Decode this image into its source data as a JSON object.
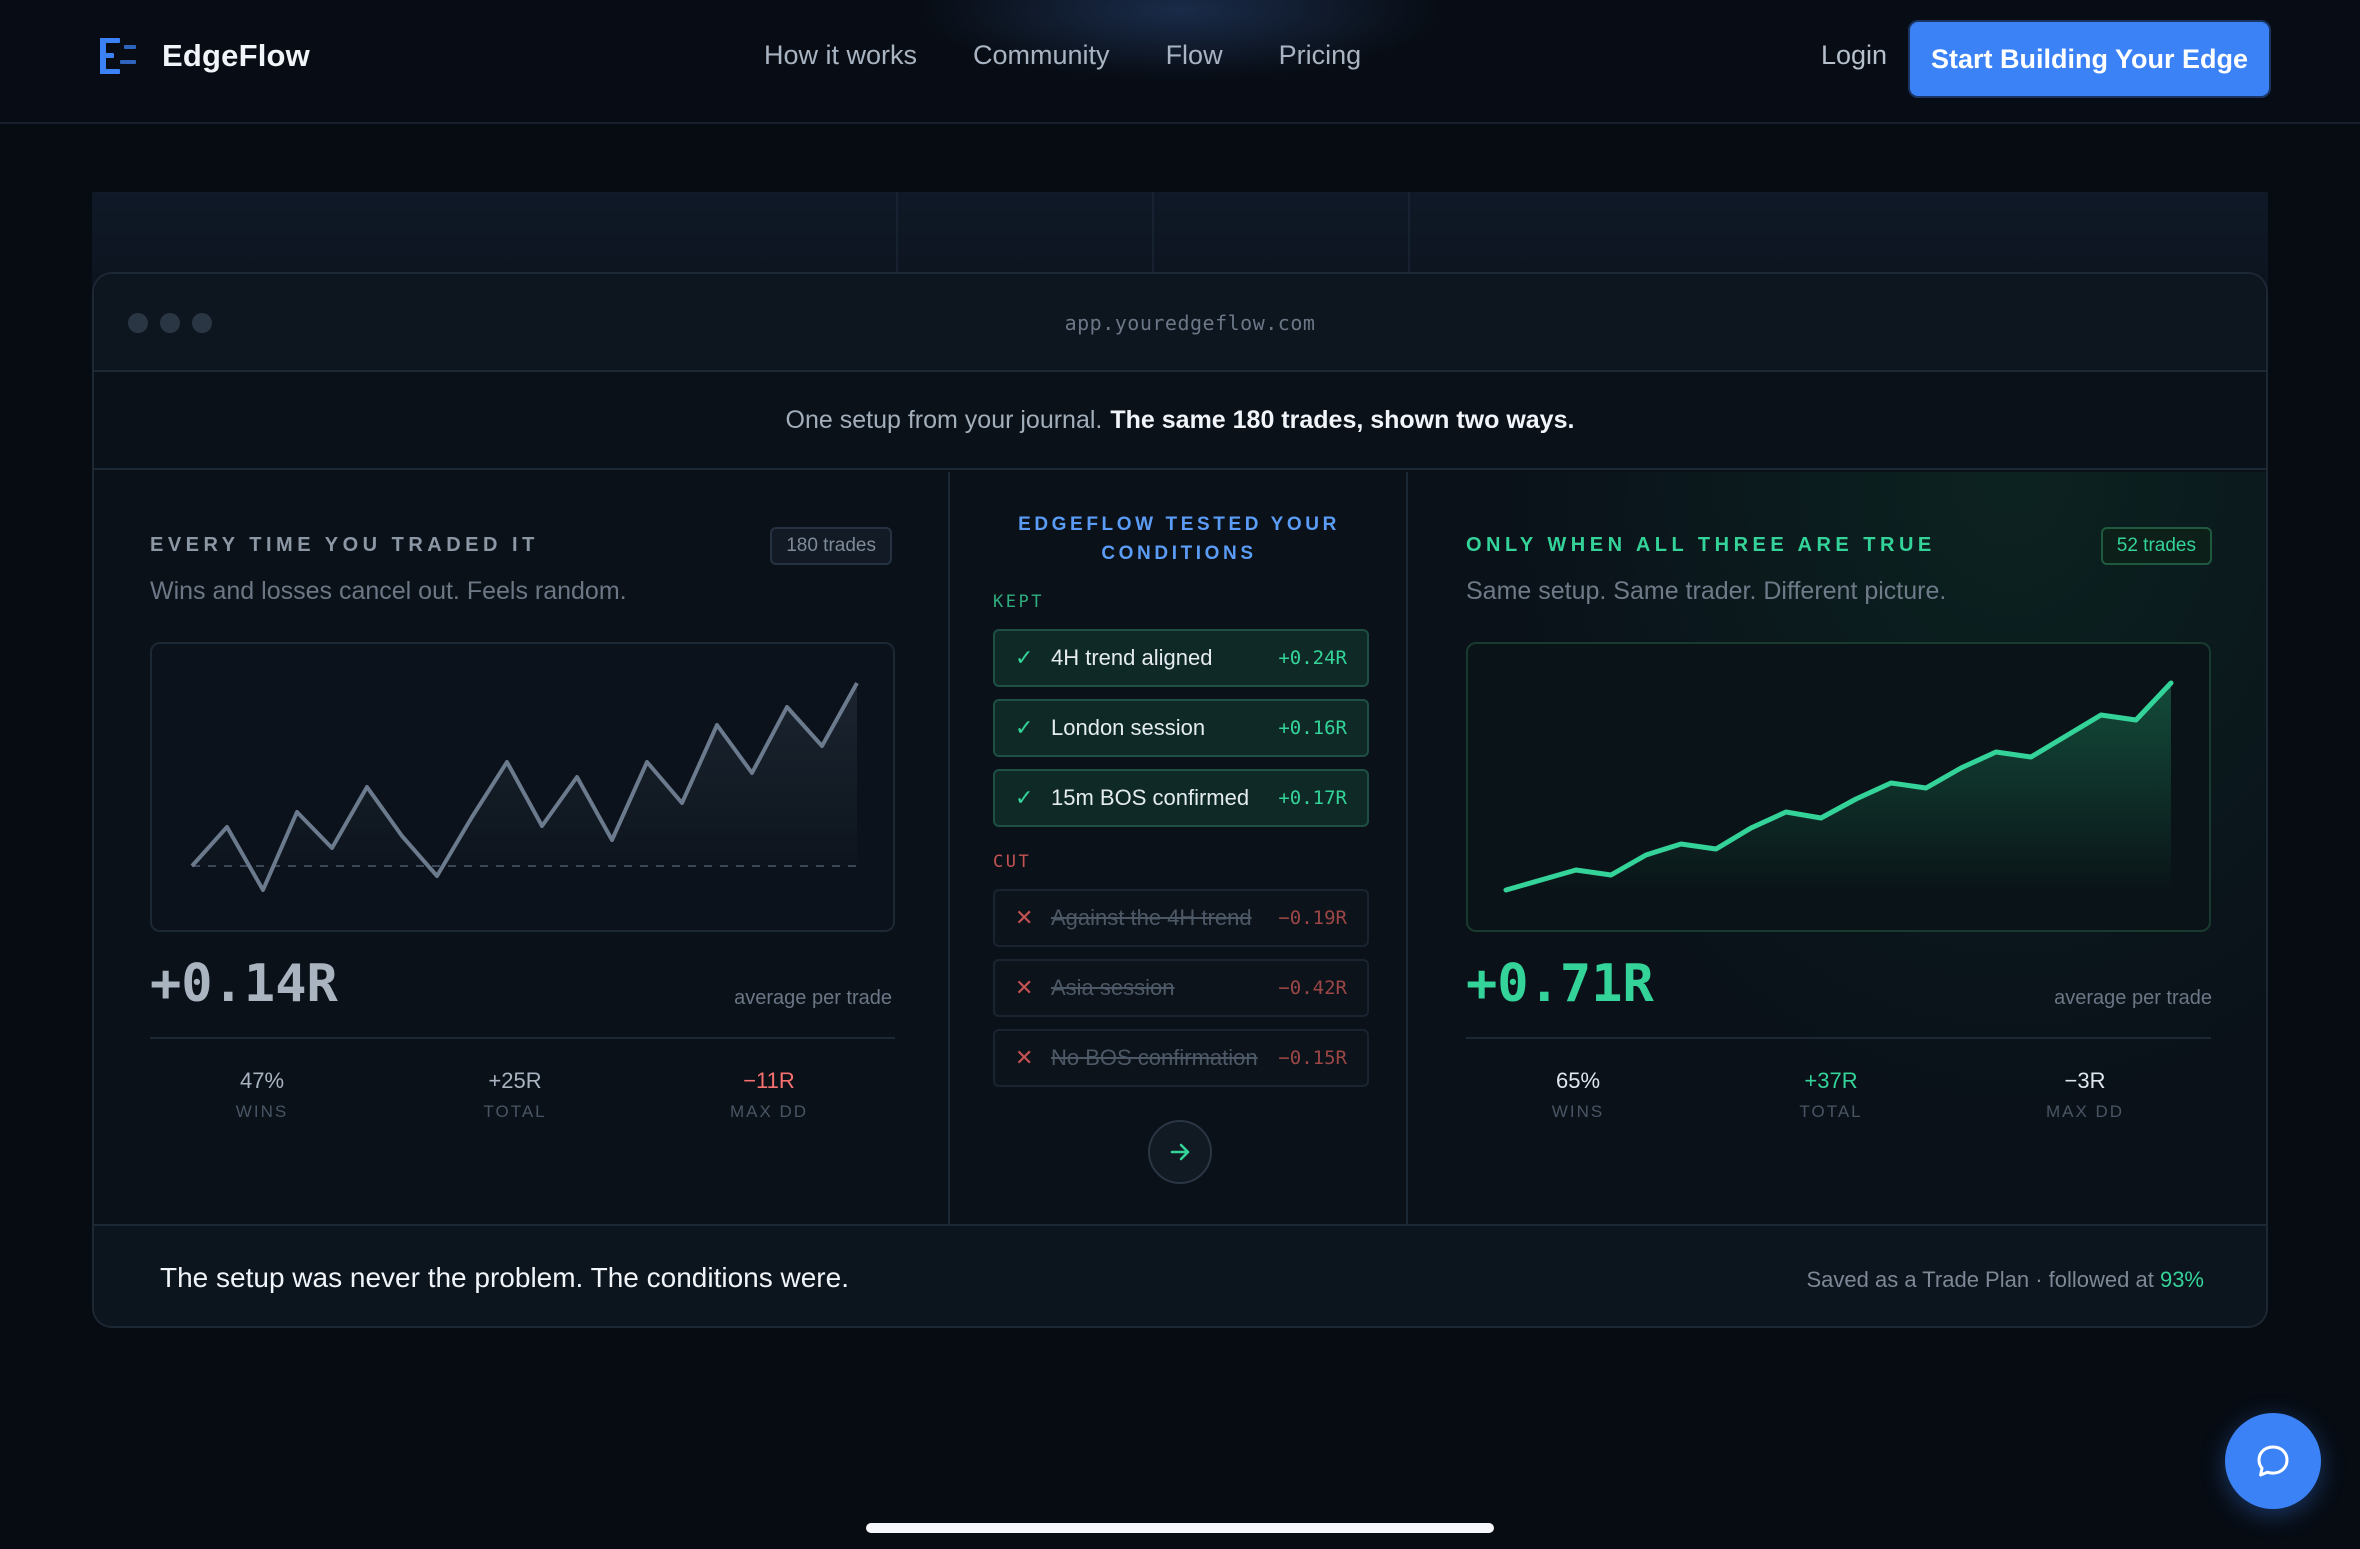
{
  "nav": {
    "brand": "EdgeFlow",
    "links": [
      "How it works",
      "Community",
      "Flow",
      "Pricing"
    ],
    "login": "Login",
    "cta": "Start Building Your Edge"
  },
  "browser": {
    "url": "app.youredgeflow.com"
  },
  "intro": {
    "lead": "One setup from your journal.",
    "emphasis": "The same 180 trades, shown two ways."
  },
  "left_panel": {
    "title": "EVERY TIME YOU TRADED IT",
    "subtitle": "Wins and losses cancel out. Feels random.",
    "badge": "180 trades",
    "value": "+0.14R",
    "value_caption": "average per trade",
    "stats": [
      {
        "value": "47%",
        "label": "WINS"
      },
      {
        "value": "+25R",
        "label": "TOTAL"
      },
      {
        "value": "−11R",
        "label": "MAX DD"
      }
    ],
    "line_color": "#6b7a8d"
  },
  "middle_panel": {
    "title_line1": "EDGEFLOW TESTED YOUR",
    "title_line2": "CONDITIONS",
    "kept_label": "KEPT",
    "kept": [
      {
        "label": "4H trend aligned",
        "value": "+0.24R"
      },
      {
        "label": "London session",
        "value": "+0.16R"
      },
      {
        "label": "15m BOS confirmed",
        "value": "+0.17R"
      }
    ],
    "cut_label": "CUT",
    "cut": [
      {
        "label": "Against the 4H trend",
        "value": "−0.19R"
      },
      {
        "label": "Asia session",
        "value": "−0.42R"
      },
      {
        "label": "No BOS confirmation",
        "value": "−0.15R"
      }
    ]
  },
  "right_panel": {
    "title": "ONLY WHEN ALL THREE ARE TRUE",
    "subtitle": "Same setup. Same trader. Different picture.",
    "badge": "52 trades",
    "value": "+0.71R",
    "value_caption": "average per trade",
    "stats": [
      {
        "value": "65%",
        "label": "WINS"
      },
      {
        "value": "+37R",
        "label": "TOTAL"
      },
      {
        "value": "−3R",
        "label": "MAX DD"
      }
    ],
    "line_color": "#34d399"
  },
  "footer": {
    "tagline": "The setup was never the problem. The conditions were.",
    "saved_prefix": "Saved as a Trade Plan · followed at",
    "saved_pct": "93%"
  },
  "colors": {
    "accent_blue": "#3b82f6",
    "accent_green": "#34d399",
    "negative_red": "#f87171"
  },
  "icons": {
    "chat": "chat-bubble-icon",
    "next": "arrow-right-icon",
    "kept": "check-icon",
    "cut": "x-icon"
  }
}
